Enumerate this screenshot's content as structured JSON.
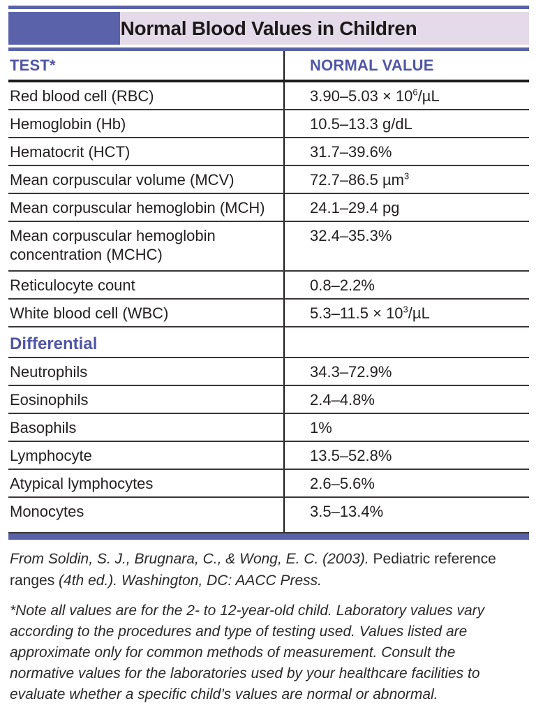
{
  "colors": {
    "accent_bar": "#5a63a9",
    "accent_text": "#4f56a5",
    "band_background": "#e4dae9",
    "rule_black": "#1c1c1c"
  },
  "title_bar": {
    "title": "Normal Blood Values in Children"
  },
  "table": {
    "columns": [
      {
        "label": "TEST*"
      },
      {
        "label": "NORMAL VALUE"
      }
    ],
    "rows": [
      {
        "test": "Red blood cell (RBC)",
        "value": "3.90–5.03 × 10^6^/µL"
      },
      {
        "test": "Hemoglobin (Hb)",
        "value": "10.5–13.3 g/dL"
      },
      {
        "test": "Hematocrit (HCT)",
        "value": "31.7–39.6%"
      },
      {
        "test": "Mean corpuscular volume (MCV)",
        "value": "72.7–86.5 µm^3^"
      },
      {
        "test": "Mean corpuscular hemoglobin (MCH)",
        "value": "24.1–29.4 pg"
      },
      {
        "test": "Mean corpuscular hemoglobin concentration (MCHC)",
        "value": "32.4–35.3%",
        "tall": true
      },
      {
        "test": "Reticulocyte count",
        "value": "0.8–2.2%"
      },
      {
        "test": "White blood cell (WBC)",
        "value": "5.3–11.5 × 10^3^/µL"
      },
      {
        "section": "Differential"
      },
      {
        "test": "Neutrophils",
        "value": "34.3–72.9%"
      },
      {
        "test": "Eosinophils",
        "value": "2.4–4.8%"
      },
      {
        "test": "Basophils",
        "value": "1%"
      },
      {
        "test": "Lymphocyte",
        "value": "13.5–52.8%"
      },
      {
        "test": "Atypical lymphocytes",
        "value": "2.6–5.6%"
      },
      {
        "test": "Monocytes",
        "value": "3.5–13.4%",
        "last": true
      }
    ]
  },
  "footer": {
    "citation_segments": [
      {
        "text": "From Soldin, S. J., Brugnara, C., & Wong, E. C. (2003). ",
        "style": "italic"
      },
      {
        "text": "Pediatric reference ranges ",
        "style": "roman"
      },
      {
        "text": "(4th ed.). Washington, DC: AACC Press.",
        "style": "italic"
      }
    ],
    "note": "*Note all values are for the 2- to 12-year-old child. Laboratory values vary according to the procedures and type of testing used. Values listed are approximate only for common methods of measurement. Consult the normative values for the laboratories used by your healthcare facilities to evaluate whether a specific child’s values are normal or abnormal."
  }
}
